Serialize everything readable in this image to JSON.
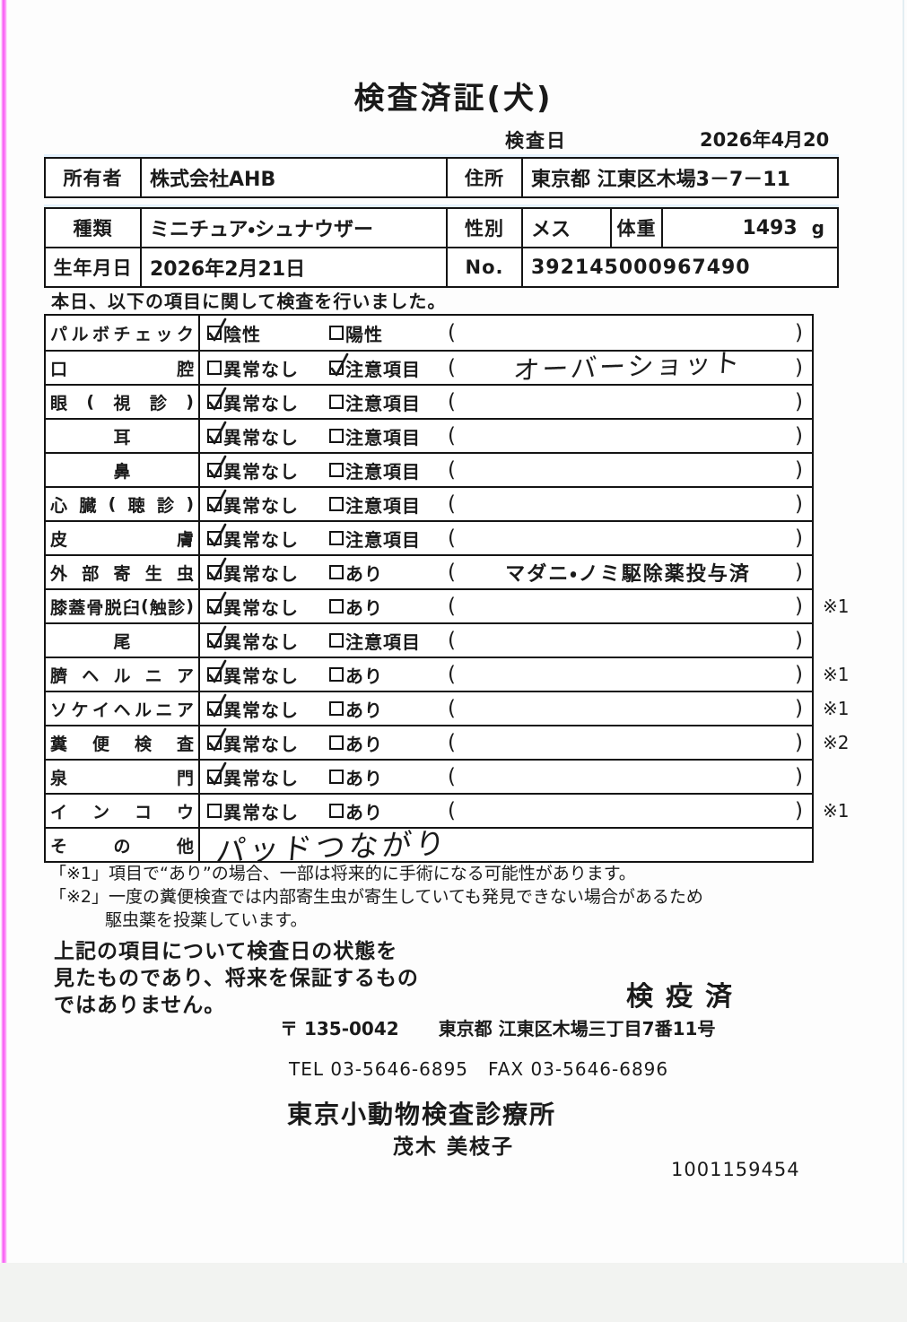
{
  "title": "検査済証(犬)",
  "inspection": {
    "date_label": "検査日",
    "date_value": "2026年4月20日"
  },
  "owner_table": {
    "owner_label": "所有者",
    "owner_value": "株式会社AHB",
    "address_label": "住所",
    "address_value": "東京都 江東区木場3－7－11"
  },
  "pet_table": {
    "breed_label": "種類",
    "breed_value": "ミニチュア・シュナウザー",
    "sex_label": "性別",
    "sex_value": "メス",
    "weight_label": "体重",
    "weight_value": "1493",
    "weight_unit": "g",
    "birth_label": "生年月日",
    "birth_value": "2026年2月21日",
    "no_label": "No.",
    "no_value": "392145000967490"
  },
  "intro": "本日、以下の項目に関して検査を行いました。",
  "exam_table": {
    "rows": [
      {
        "label": "パルボチェック",
        "align": "spread",
        "opt1": {
          "text": "陰性",
          "checked": true
        },
        "opt2": {
          "text": "陽性",
          "checked": false
        },
        "paren": "",
        "paren_hand": "",
        "note": ""
      },
      {
        "label": "口腔",
        "align": "spread",
        "opt1": {
          "text": "異常なし",
          "checked": false
        },
        "opt2": {
          "text": "注意項目",
          "checked": true
        },
        "paren": "",
        "paren_hand": "オーバーショット",
        "note": ""
      },
      {
        "label": "眼(視診)",
        "align": "spread",
        "opt1": {
          "text": "異常なし",
          "checked": true
        },
        "opt2": {
          "text": "注意項目",
          "checked": false
        },
        "paren": "",
        "paren_hand": "",
        "note": ""
      },
      {
        "label": "耳",
        "align": "center",
        "opt1": {
          "text": "異常なし",
          "checked": true
        },
        "opt2": {
          "text": "注意項目",
          "checked": false
        },
        "paren": "",
        "paren_hand": "",
        "note": ""
      },
      {
        "label": "鼻",
        "align": "center",
        "opt1": {
          "text": "異常なし",
          "checked": true
        },
        "opt2": {
          "text": "注意項目",
          "checked": false
        },
        "paren": "",
        "paren_hand": "",
        "note": ""
      },
      {
        "label": "心臓(聴診)",
        "align": "spread",
        "opt1": {
          "text": "異常なし",
          "checked": true
        },
        "opt2": {
          "text": "注意項目",
          "checked": false
        },
        "paren": "",
        "paren_hand": "",
        "note": ""
      },
      {
        "label": "皮膚",
        "align": "spread",
        "opt1": {
          "text": "異常なし",
          "checked": true
        },
        "opt2": {
          "text": "注意項目",
          "checked": false
        },
        "paren": "",
        "paren_hand": "",
        "note": ""
      },
      {
        "label": "外部寄生虫",
        "align": "spread",
        "opt1": {
          "text": "異常なし",
          "checked": true
        },
        "opt2": {
          "text": "あり",
          "checked": false
        },
        "paren": "マダニ・ノミ駆除薬投与済",
        "paren_hand": "",
        "note": ""
      },
      {
        "label": "膝蓋骨脱臼(触診)",
        "align": "spread",
        "opt1": {
          "text": "異常なし",
          "checked": true
        },
        "opt2": {
          "text": "あり",
          "checked": false
        },
        "paren": "",
        "paren_hand": "",
        "note": "※1"
      },
      {
        "label": "尾",
        "align": "center",
        "opt1": {
          "text": "異常なし",
          "checked": true
        },
        "opt2": {
          "text": "注意項目",
          "checked": false
        },
        "paren": "",
        "paren_hand": "",
        "note": ""
      },
      {
        "label": "臍ヘルニア",
        "align": "spread",
        "opt1": {
          "text": "異常なし",
          "checked": true
        },
        "opt2": {
          "text": "あり",
          "checked": false
        },
        "paren": "",
        "paren_hand": "",
        "note": "※1"
      },
      {
        "label": "ソケイヘルニア",
        "align": "spread",
        "opt1": {
          "text": "異常なし",
          "checked": true
        },
        "opt2": {
          "text": "あり",
          "checked": false
        },
        "paren": "",
        "paren_hand": "",
        "note": "※1"
      },
      {
        "label": "糞便検査",
        "align": "spread",
        "opt1": {
          "text": "異常なし",
          "checked": true
        },
        "opt2": {
          "text": "あり",
          "checked": false
        },
        "paren": "",
        "paren_hand": "",
        "note": "※2"
      },
      {
        "label": "泉門",
        "align": "spread",
        "opt1": {
          "text": "異常なし",
          "checked": true
        },
        "opt2": {
          "text": "あり",
          "checked": false
        },
        "paren": "",
        "paren_hand": "",
        "note": ""
      },
      {
        "label": "インコウ",
        "align": "spread",
        "opt1": {
          "text": "異常なし",
          "checked": false
        },
        "opt2": {
          "text": "あり",
          "checked": false
        },
        "paren": "",
        "paren_hand": "",
        "note": "※1"
      },
      {
        "label": "その他",
        "align": "spread",
        "other_hand": "パッドつながり",
        "note": ""
      }
    ]
  },
  "notes": [
    {
      "text": "「※1」項目で“あり”の場合、一部は将来的に手術になる可能性があります。",
      "indent": false
    },
    {
      "text": "「※2」一度の糞便検査では内部寄生虫が寄生していても発見できない場合があるため",
      "indent": false
    },
    {
      "text": "駆虫薬を投薬しています。",
      "indent": true
    }
  ],
  "disclaimer_lines": [
    "上記の項目について検査日の状態を",
    "見たものであり、将来を保証するもの",
    "ではありません。"
  ],
  "stamp": "検疫済",
  "clinic": {
    "postal": "〒 135-0042",
    "address": "東京都 江東区木場三丁目7番11号",
    "tel": "TEL 03-5646-6895",
    "fax": "FAX 03-5646-6896",
    "name": "東京小動物検査診療所",
    "person": "茂木 美枝子",
    "serial": "1001159454"
  },
  "colors": {
    "scan_edge_pink": "#f859f4",
    "border": "#141414",
    "ink": "#1a1a1a"
  }
}
